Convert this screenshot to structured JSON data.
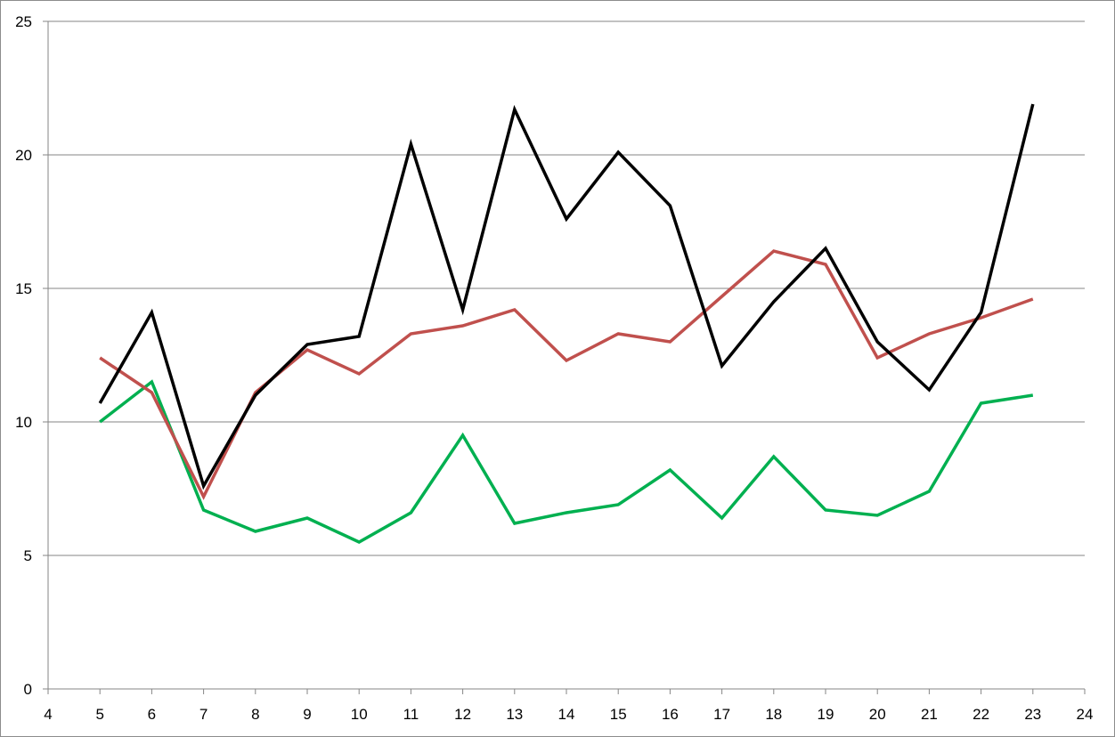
{
  "chart_data": {
    "type": "line",
    "title": "",
    "xlabel": "",
    "ylabel": "",
    "xlim": [
      4,
      24
    ],
    "ylim": [
      0,
      25
    ],
    "x_ticks": [
      4,
      5,
      6,
      7,
      8,
      9,
      10,
      11,
      12,
      13,
      14,
      15,
      16,
      17,
      18,
      19,
      20,
      21,
      22,
      23,
      24
    ],
    "y_ticks": [
      0,
      5,
      10,
      15,
      20,
      25
    ],
    "grid": "horizontal",
    "legend": "none",
    "x": [
      5,
      6,
      7,
      8,
      9,
      10,
      11,
      12,
      13,
      14,
      15,
      16,
      17,
      18,
      19,
      20,
      21,
      22,
      23
    ],
    "series": [
      {
        "color": "#000000",
        "values": [
          10.7,
          14.1,
          7.6,
          11.0,
          12.9,
          13.2,
          20.4,
          14.2,
          21.7,
          17.6,
          20.1,
          18.1,
          12.1,
          14.5,
          16.5,
          13.0,
          11.2,
          14.1,
          21.9
        ]
      },
      {
        "color": "#c0504d",
        "values": [
          12.4,
          11.1,
          7.2,
          11.1,
          12.7,
          11.8,
          13.3,
          13.6,
          14.2,
          12.3,
          13.3,
          13.0,
          14.7,
          16.4,
          15.9,
          12.4,
          13.3,
          13.9,
          14.6
        ]
      },
      {
        "color": "#00b050",
        "values": [
          10.0,
          11.5,
          6.7,
          5.9,
          6.4,
          5.5,
          6.6,
          9.5,
          6.2,
          6.6,
          6.9,
          8.2,
          6.4,
          8.7,
          6.7,
          6.5,
          7.4,
          10.7,
          11.0
        ]
      }
    ]
  }
}
